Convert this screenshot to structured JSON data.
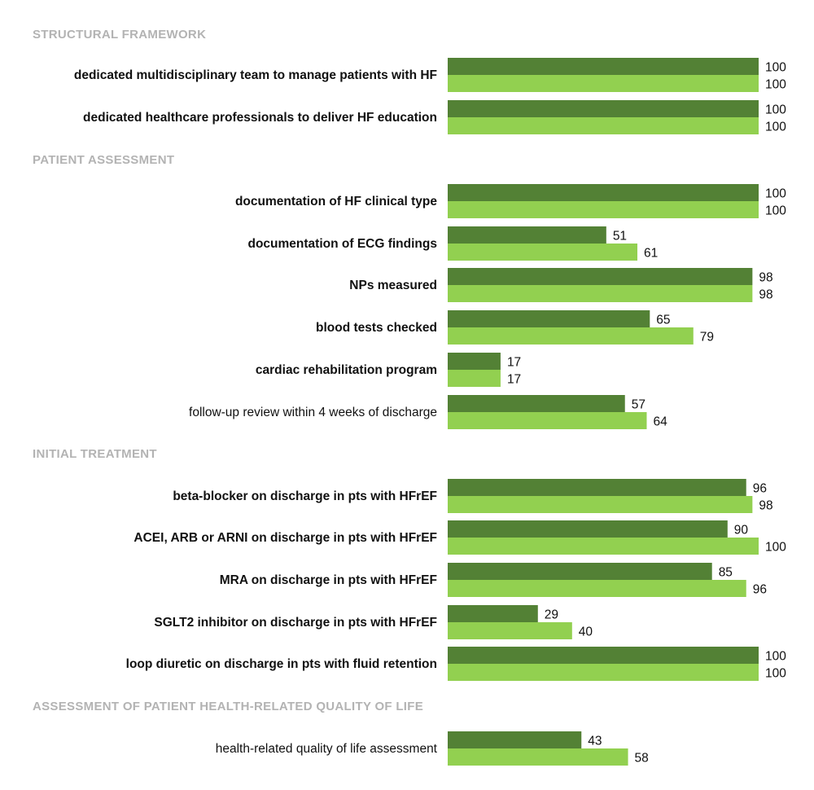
{
  "chart_data": {
    "type": "bar",
    "orientation": "horizontal",
    "xlim": [
      0,
      100
    ],
    "grid": false,
    "legend": "none",
    "colors": {
      "series1": "#538135",
      "series2": "#92d050"
    },
    "sections": [
      {
        "title": "STRUCTURAL FRAMEWORK",
        "rows": [
          {
            "label": "dedicated multidisciplinary team to manage patients with HF",
            "bold": true,
            "values": [
              100,
              100
            ]
          },
          {
            "label": "dedicated healthcare professionals to deliver HF education",
            "bold": true,
            "values": [
              100,
              100
            ]
          }
        ]
      },
      {
        "title": "PATIENT ASSESSMENT",
        "rows": [
          {
            "label": "documentation of HF clinical type",
            "bold": true,
            "values": [
              100,
              100
            ]
          },
          {
            "label": "documentation of ECG findings",
            "bold": true,
            "values": [
              51,
              61
            ]
          },
          {
            "label": "NPs measured",
            "bold": true,
            "values": [
              98,
              98
            ]
          },
          {
            "label": "blood tests checked",
            "bold": true,
            "values": [
              65,
              79
            ]
          },
          {
            "label": "cardiac rehabilitation program",
            "bold": true,
            "values": [
              17,
              17
            ]
          },
          {
            "label": "follow-up review within 4 weeks of discharge",
            "bold": false,
            "values": [
              57,
              64
            ]
          }
        ]
      },
      {
        "title": "INITIAL TREATMENT",
        "rows": [
          {
            "label": "beta-blocker on discharge in pts with HFrEF",
            "bold": true,
            "values": [
              96,
              98
            ]
          },
          {
            "label": "ACEI, ARB or ARNI on discharge in pts with HFrEF",
            "bold": true,
            "values": [
              90,
              100
            ]
          },
          {
            "label": "MRA on discharge in pts with HFrEF",
            "bold": true,
            "values": [
              85,
              96
            ]
          },
          {
            "label": "SGLT2 inhibitor on discharge in pts with HFrEF",
            "bold": true,
            "values": [
              29,
              40
            ]
          },
          {
            "label": "loop diuretic on discharge in pts with fluid retention",
            "bold": true,
            "values": [
              100,
              100
            ]
          }
        ]
      },
      {
        "title": "ASSESSMENT OF PATIENT HEALTH-RELATED QUALITY OF LIFE",
        "rows": [
          {
            "label": "health-related quality of life assessment",
            "bold": false,
            "values": [
              43,
              58
            ]
          }
        ]
      }
    ]
  }
}
